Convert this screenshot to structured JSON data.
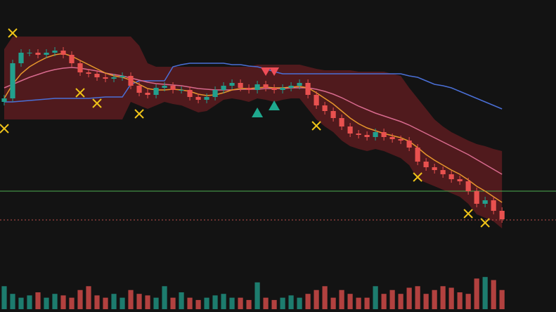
{
  "chart_data": {
    "type": "candlestick",
    "x": [
      0,
      1,
      2,
      3,
      4,
      5,
      6,
      7,
      8,
      9,
      10,
      11,
      12,
      13,
      14,
      15,
      16,
      17,
      18,
      19,
      20,
      21,
      22,
      23,
      24,
      25,
      26,
      27,
      28,
      29,
      30,
      31,
      32,
      33,
      34,
      35,
      36,
      37,
      38,
      39,
      40,
      41,
      42,
      43,
      44,
      45,
      46,
      47,
      48,
      49,
      50,
      51,
      52,
      53,
      54,
      55,
      56,
      57,
      58,
      59
    ],
    "xlim": [
      -0.5,
      65.4
    ],
    "ylim": [
      0,
      320
    ],
    "open": [
      175,
      180,
      230,
      245,
      245,
      242,
      245,
      248,
      242,
      230,
      217,
      215,
      210,
      208,
      210,
      212,
      198,
      188,
      185,
      195,
      198,
      192,
      192,
      182,
      178,
      182,
      192,
      198,
      202,
      195,
      192,
      200,
      195,
      192,
      195,
      198,
      202,
      185,
      170,
      162,
      152,
      140,
      130,
      128,
      125,
      132,
      125,
      122,
      120,
      110,
      90,
      82,
      78,
      72,
      65,
      62,
      48,
      30,
      35,
      20
    ],
    "high": [
      185,
      235,
      250,
      250,
      250,
      250,
      253,
      253,
      247,
      235,
      222,
      220,
      215,
      215,
      217,
      217,
      203,
      193,
      200,
      203,
      203,
      197,
      197,
      187,
      187,
      197,
      203,
      207,
      207,
      200,
      205,
      205,
      200,
      200,
      203,
      207,
      207,
      190,
      175,
      167,
      157,
      145,
      135,
      133,
      137,
      137,
      130,
      127,
      125,
      115,
      95,
      87,
      83,
      77,
      70,
      67,
      53,
      40,
      40,
      25
    ],
    "low": [
      170,
      175,
      225,
      240,
      237,
      237,
      240,
      237,
      225,
      212,
      210,
      205,
      203,
      203,
      205,
      193,
      183,
      180,
      180,
      190,
      187,
      187,
      177,
      173,
      173,
      177,
      187,
      193,
      190,
      187,
      187,
      190,
      187,
      187,
      190,
      193,
      180,
      165,
      157,
      147,
      135,
      125,
      123,
      120,
      120,
      120,
      117,
      115,
      105,
      85,
      77,
      73,
      67,
      60,
      57,
      43,
      25,
      25,
      15,
      3
    ],
    "close": [
      180,
      230,
      245,
      245,
      242,
      245,
      248,
      242,
      230,
      217,
      215,
      210,
      208,
      210,
      212,
      198,
      188,
      185,
      195,
      198,
      192,
      192,
      182,
      178,
      182,
      192,
      198,
      202,
      195,
      192,
      200,
      195,
      192,
      195,
      198,
      202,
      185,
      170,
      162,
      152,
      140,
      130,
      128,
      125,
      132,
      125,
      122,
      120,
      110,
      90,
      82,
      78,
      72,
      65,
      62,
      48,
      30,
      35,
      20,
      8
    ],
    "up_color": "#22a08e",
    "down_color": "#e8514f",
    "band": {
      "color": "#5c1c20",
      "upper": [
        250,
        268,
        268,
        268,
        268,
        268,
        268,
        268,
        268,
        268,
        268,
        268,
        268,
        268,
        268,
        268,
        255,
        230,
        225,
        225,
        225,
        225,
        225,
        225,
        225,
        225,
        225,
        225,
        225,
        225,
        228,
        228,
        228,
        228,
        228,
        228,
        225,
        222,
        220,
        220,
        220,
        220,
        218,
        218,
        218,
        218,
        215,
        212,
        195,
        180,
        165,
        150,
        140,
        132,
        126,
        120,
        115,
        112,
        108,
        105
      ],
      "lower": [
        150,
        150,
        150,
        150,
        150,
        150,
        150,
        150,
        150,
        150,
        150,
        150,
        150,
        150,
        150,
        175,
        170,
        165,
        170,
        175,
        172,
        170,
        165,
        160,
        162,
        170,
        178,
        180,
        178,
        175,
        180,
        178,
        175,
        178,
        180,
        180,
        165,
        150,
        140,
        132,
        120,
        112,
        108,
        105,
        108,
        105,
        100,
        95,
        85,
        65,
        60,
        55,
        50,
        45,
        40,
        30,
        15,
        10,
        5,
        -5
      ]
    },
    "series": [
      {
        "color": "#4a6fd6",
        "values": [
          175,
          175,
          176,
          177,
          178,
          179,
          180,
          180,
          180,
          180,
          180,
          181,
          182,
          182,
          182,
          200,
          205,
          205,
          205,
          205,
          225,
          228,
          230,
          230,
          230,
          230,
          230,
          228,
          228,
          226,
          225,
          222,
          218,
          215,
          215,
          215,
          215,
          215,
          215,
          215,
          215,
          215,
          215,
          215,
          215,
          215,
          215,
          215,
          212,
          210,
          205,
          200,
          198,
          195,
          190,
          185,
          180,
          175,
          170,
          165
        ]
      },
      {
        "color": "#d86a8e",
        "values": [
          195,
          200,
          205,
          210,
          214,
          218,
          221,
          223,
          224,
          223,
          221,
          219,
          216,
          214,
          212,
          209,
          206,
          203,
          201,
          200,
          199,
          198,
          196,
          194,
          193,
          192,
          192,
          192,
          193,
          193,
          193,
          194,
          194,
          194,
          195,
          195,
          195,
          193,
          190,
          186,
          181,
          175,
          169,
          164,
          159,
          155,
          151,
          147,
          142,
          136,
          130,
          124,
          118,
          112,
          106,
          100,
          93,
          86,
          79,
          72
        ]
      },
      {
        "color": "#e6962c",
        "values": [
          180,
          200,
          215,
          225,
          232,
          238,
          242,
          244,
          240,
          234,
          228,
          222,
          216,
          212,
          210,
          206,
          200,
          194,
          192,
          192,
          193,
          192,
          190,
          186,
          184,
          185,
          188,
          192,
          194,
          194,
          195,
          196,
          195,
          195,
          196,
          197,
          195,
          188,
          180,
          172,
          162,
          152,
          144,
          138,
          134,
          130,
          127,
          124,
          119,
          110,
          100,
          92,
          85,
          78,
          72,
          64,
          55,
          48,
          40,
          32
        ]
      }
    ],
    "cross_markers": {
      "color": "#f0c419",
      "x": [
        1,
        0,
        9,
        11,
        16,
        37,
        49,
        55,
        57
      ],
      "y": [
        273,
        137,
        188,
        173,
        158,
        141,
        68,
        16,
        3
      ]
    },
    "up_triangles": {
      "color": "#1fa88e",
      "x": [
        30,
        32
      ],
      "y": [
        160,
        170
      ]
    },
    "down_triangles": {
      "color": "#ee4d57",
      "x": [
        31,
        32
      ],
      "y": [
        218,
        218
      ]
    },
    "hlines": [
      {
        "value": 48,
        "color": "#4caf50",
        "style": "solid"
      },
      {
        "value": 7,
        "color": "#c0504d",
        "style": "dotted"
      }
    ],
    "volume": [
      30,
      20,
      15,
      18,
      22,
      15,
      20,
      18,
      15,
      25,
      30,
      18,
      15,
      20,
      15,
      25,
      20,
      18,
      15,
      30,
      15,
      22,
      15,
      12,
      15,
      18,
      20,
      15,
      15,
      12,
      35,
      15,
      12,
      15,
      18,
      15,
      20,
      25,
      30,
      15,
      25,
      20,
      15,
      15,
      30,
      20,
      25,
      20,
      28,
      30,
      20,
      25,
      30,
      28,
      22,
      20,
      40,
      42,
      38,
      25
    ],
    "volume_lim": [
      0,
      110
    ]
  }
}
